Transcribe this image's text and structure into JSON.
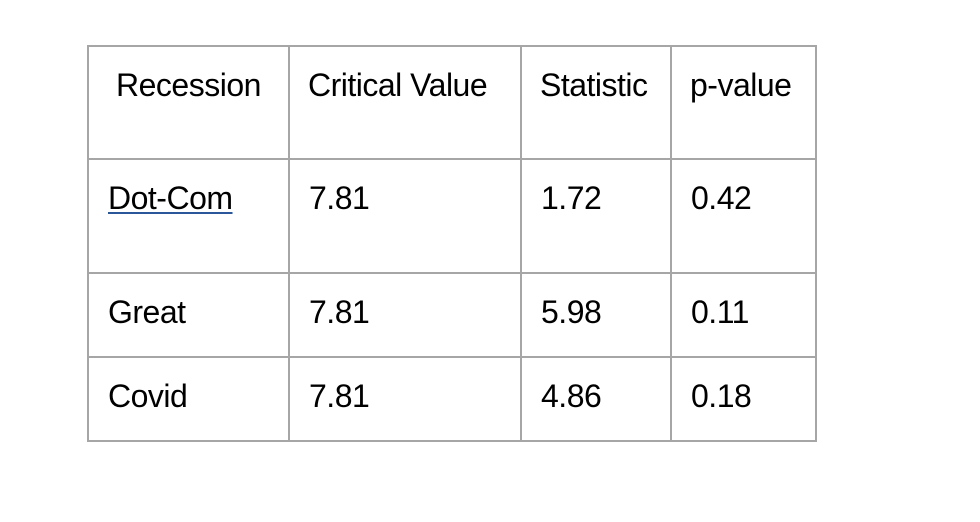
{
  "table": {
    "headers": [
      "Recession",
      "Critical Value",
      "Statistic",
      "p-value"
    ],
    "rows": [
      [
        "Dot-Com",
        "7.81",
        "1.72",
        "0.42"
      ],
      [
        "Great",
        "7.81",
        "5.98",
        "0.11"
      ],
      [
        "Covid",
        "7.81",
        "4.86",
        "0.18"
      ]
    ]
  },
  "colors": {
    "border": "#a6a6a6",
    "text": "#000000",
    "link_underline": "#2b579a"
  }
}
